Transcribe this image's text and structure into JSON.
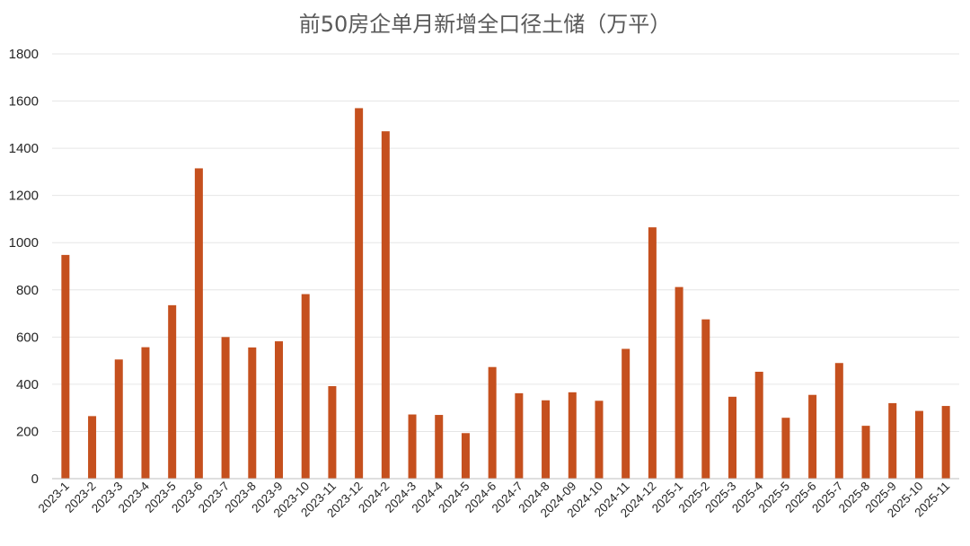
{
  "chart_data": {
    "type": "bar",
    "title": "前50房企单月新增全口径土储（万平）",
    "xlabel": "",
    "ylabel": "",
    "ylim": [
      0,
      1800
    ],
    "yticks": [
      0,
      200,
      400,
      600,
      800,
      1000,
      1200,
      1400,
      1600,
      1800
    ],
    "grid": true,
    "legend": "none",
    "bar_color": "#C5501E",
    "categories": [
      "2023-1",
      "2023-2",
      "2023-3",
      "2023-4",
      "2023-5",
      "2023-6",
      "2023-7",
      "2023-8",
      "2023-9",
      "2023-10",
      "2023-11",
      "2023-12",
      "2024-2",
      "2024-3",
      "2024-4",
      "2024-5",
      "2024-6",
      "2024-7",
      "2024-8",
      "2024-09",
      "2024-10",
      "2024-11",
      "2024-12",
      "2025-1",
      "2025-2",
      "2025-3",
      "2025-4",
      "2025-5",
      "2025-6",
      "2025-7",
      "2025-8",
      "2025-9",
      "2025-10",
      "2025-11"
    ],
    "values": [
      948,
      265,
      505,
      557,
      735,
      1315,
      600,
      556,
      582,
      782,
      392,
      1570,
      1472,
      272,
      270,
      193,
      473,
      362,
      332,
      366,
      330,
      550,
      1065,
      812,
      675,
      347,
      453,
      258,
      355,
      490,
      224,
      320,
      287,
      308
    ]
  }
}
